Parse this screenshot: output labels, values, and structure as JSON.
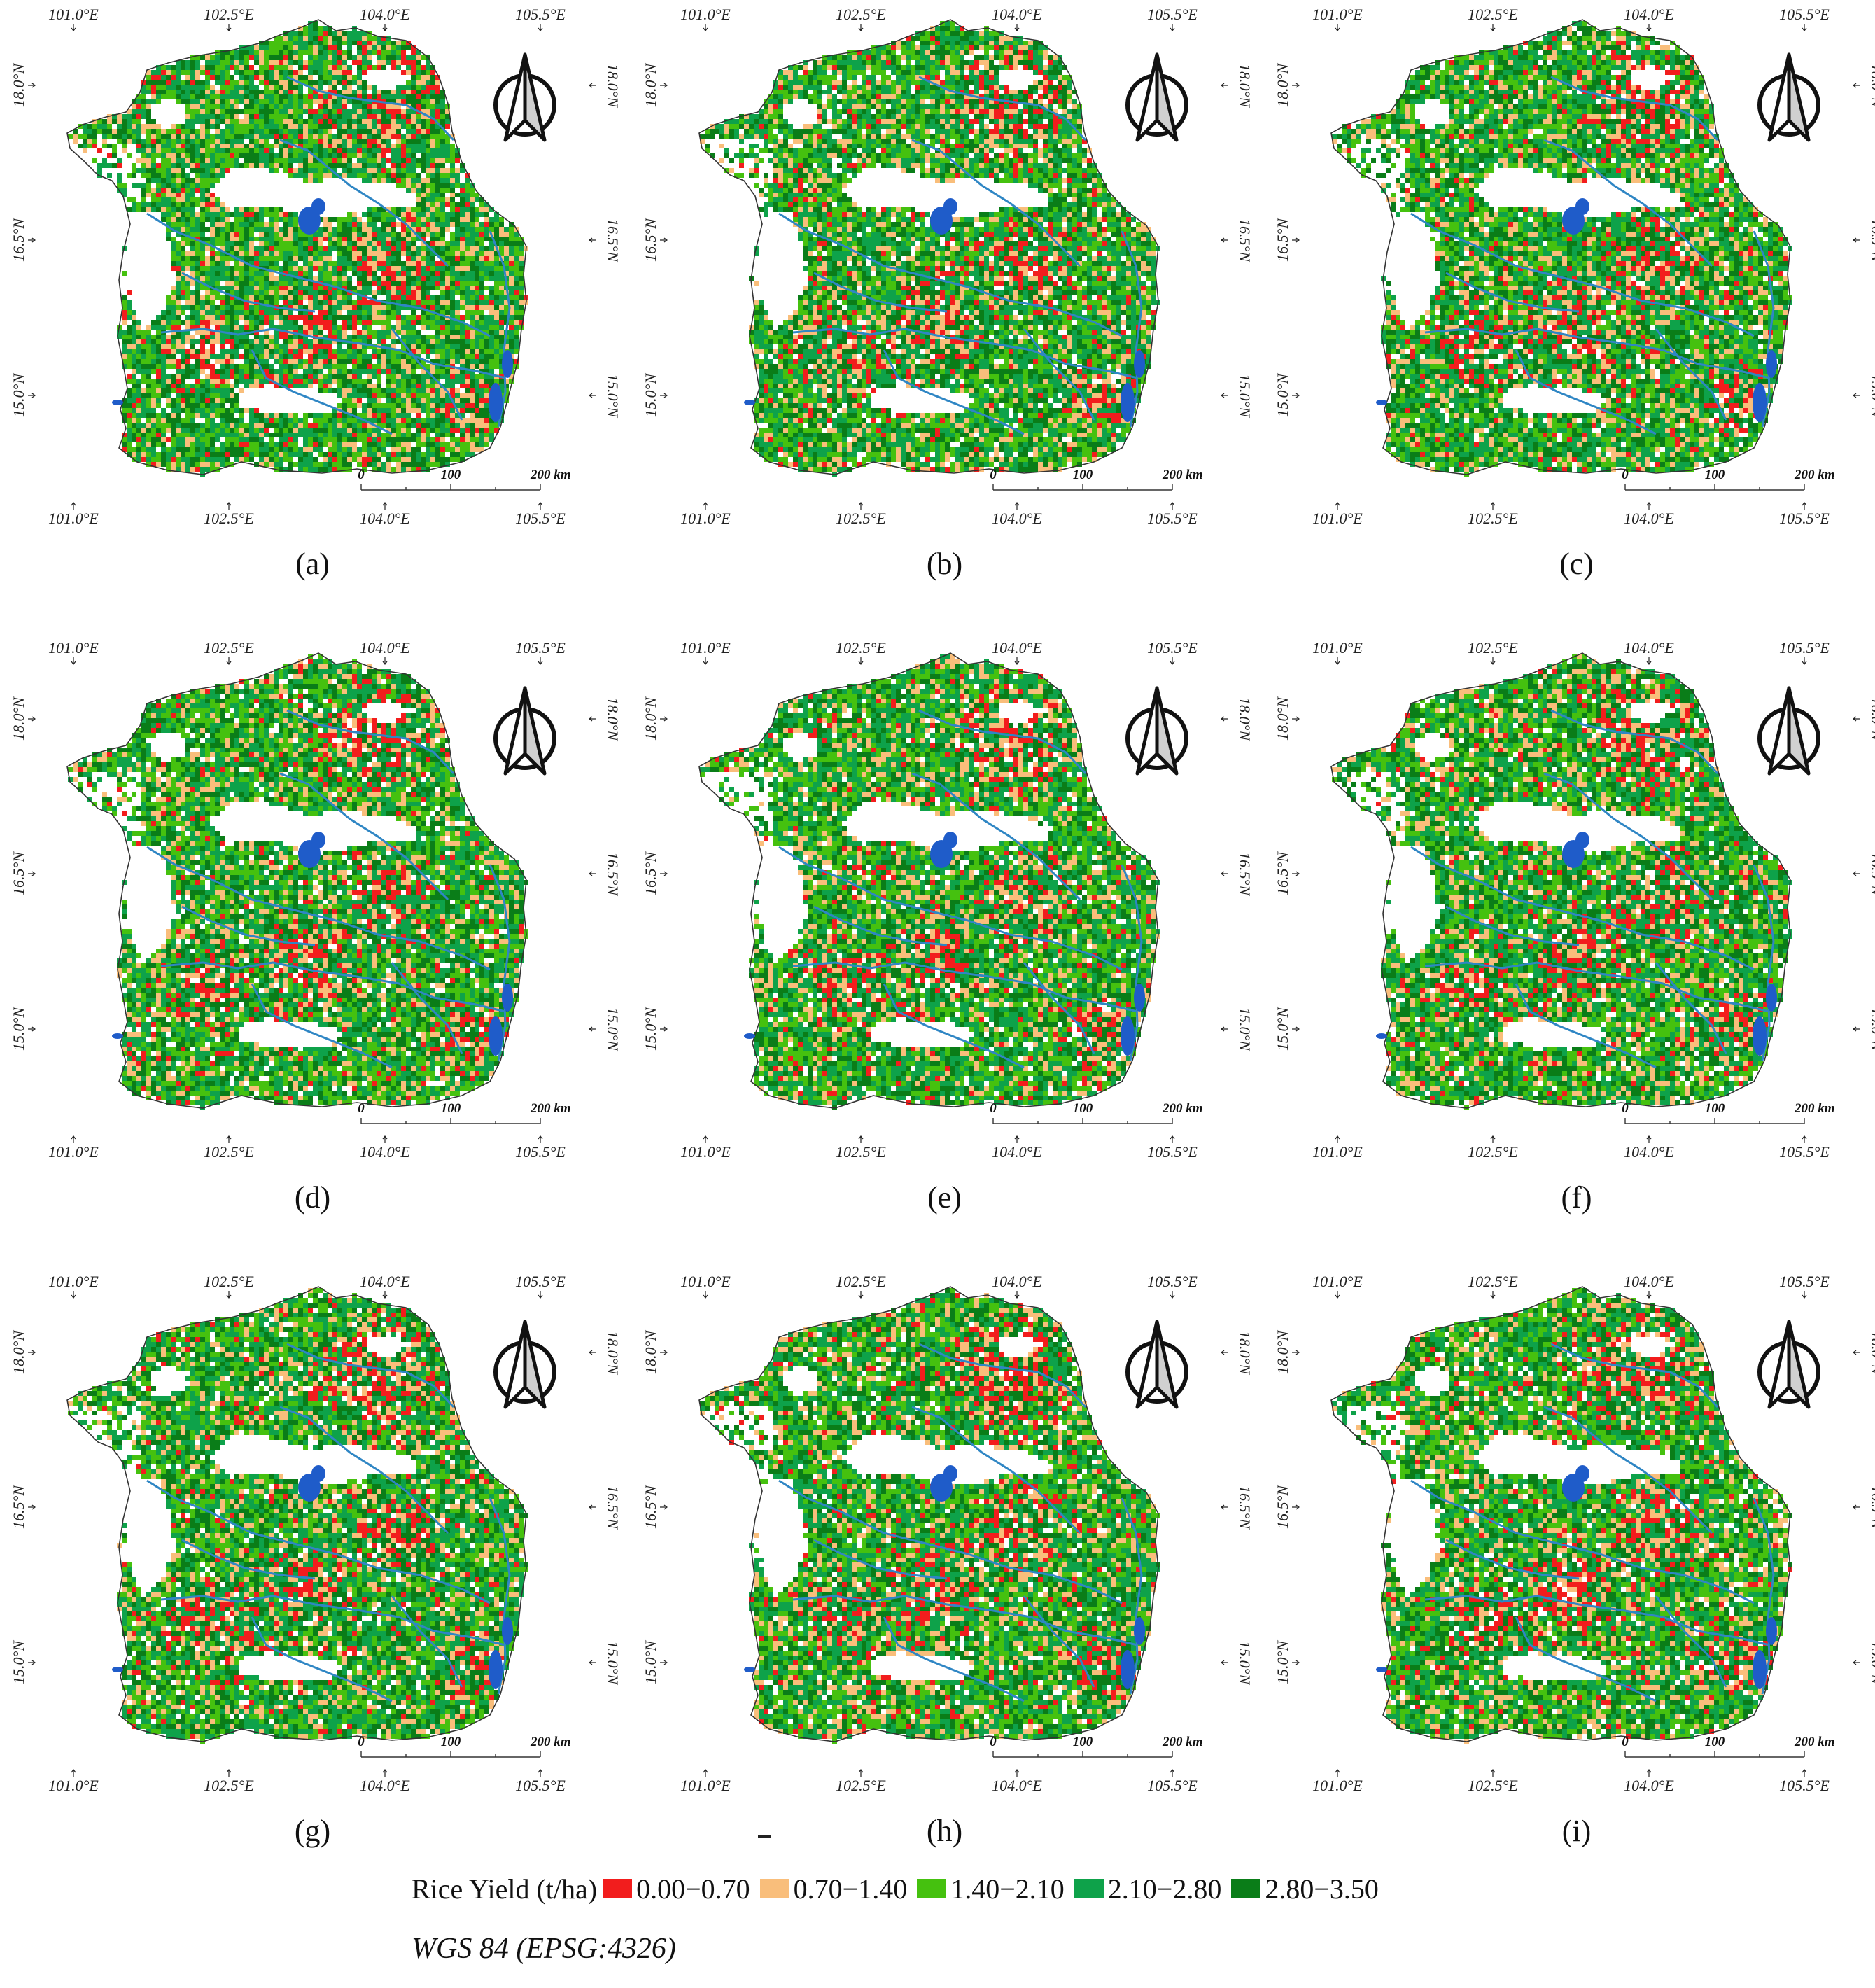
{
  "panels": [
    {
      "label": "(a)"
    },
    {
      "label": "(b)"
    },
    {
      "label": "(c)"
    },
    {
      "label": "(d)"
    },
    {
      "label": "(e)"
    },
    {
      "label": "(f)"
    },
    {
      "label": "(g)"
    },
    {
      "label": "(h)"
    },
    {
      "label": "(i)"
    }
  ],
  "axes": {
    "lon_labels": [
      "101.0°E",
      "102.5°E",
      "104.0°E",
      "105.5°E"
    ],
    "lat_labels": [
      "18.0°N",
      "16.5°N",
      "15.0°N"
    ]
  },
  "scale_bar": {
    "labels": [
      "0",
      "100",
      "200 km"
    ]
  },
  "legend": {
    "title": "Rice Yield (t/ha)",
    "items": [
      {
        "label": "0.00−0.70",
        "color": "#f21d1d"
      },
      {
        "label": "0.70−1.40",
        "color": "#f9be7b"
      },
      {
        "label": "1.40−2.10",
        "color": "#45c10f"
      },
      {
        "label": "2.10−2.80",
        "color": "#0ea24a"
      },
      {
        "label": "2.80−3.50",
        "color": "#0a7d18"
      }
    ]
  },
  "crs": "WGS 84 (EPSG:4326)",
  "colors": {
    "river": "#2f86c4",
    "water": "#1f5cc9",
    "boundary": "#333333"
  }
}
